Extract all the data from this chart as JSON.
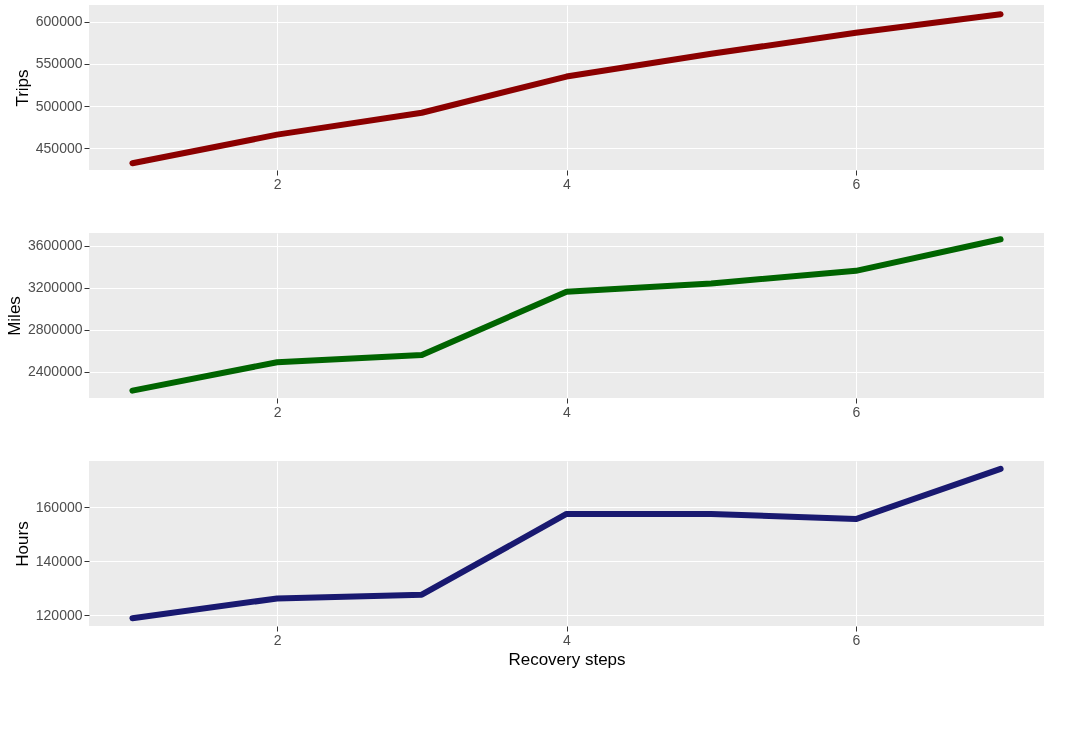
{
  "chart_data": [
    {
      "type": "line",
      "ylabel": "Trips",
      "x": [
        1,
        2,
        3,
        4,
        5,
        6,
        7
      ],
      "series": [
        {
          "color": "#8b0000",
          "values": [
            432000,
            466000,
            492000,
            535000,
            562000,
            587000,
            609000
          ]
        }
      ],
      "xlim": [
        0.7,
        7.3
      ],
      "xticks": [
        2,
        4,
        6
      ],
      "ylim": [
        424000,
        620000
      ],
      "yticks": [
        450000,
        500000,
        550000,
        600000
      ],
      "grid": true,
      "line_style": "solid"
    },
    {
      "type": "line",
      "ylabel": "Miles",
      "x": [
        1,
        2,
        3,
        4,
        5,
        6,
        7
      ],
      "series": [
        {
          "color": "#006400",
          "values": [
            2220000,
            2490000,
            2560000,
            3160000,
            3240000,
            3360000,
            3660000
          ]
        }
      ],
      "xlim": [
        0.7,
        7.3
      ],
      "xticks": [
        2,
        4,
        6
      ],
      "ylim": [
        2150000,
        3720000
      ],
      "yticks": [
        2400000,
        2800000,
        3200000,
        3600000
      ],
      "grid": true,
      "line_style": "solid"
    },
    {
      "type": "line",
      "ylabel": "Hours",
      "xlabel": "Recovery steps",
      "x": [
        1,
        2,
        3,
        4,
        5,
        6,
        7
      ],
      "series": [
        {
          "color": "#191970",
          "values": [
            118900,
            126200,
            127600,
            157500,
            157500,
            155600,
            174200
          ]
        }
      ],
      "xlim": [
        0.7,
        7.3
      ],
      "xticks": [
        2,
        4,
        6
      ],
      "ylim": [
        116000,
        177100
      ],
      "yticks": [
        120000,
        140000,
        160000
      ],
      "grid": true,
      "line_style": "solid"
    }
  ]
}
